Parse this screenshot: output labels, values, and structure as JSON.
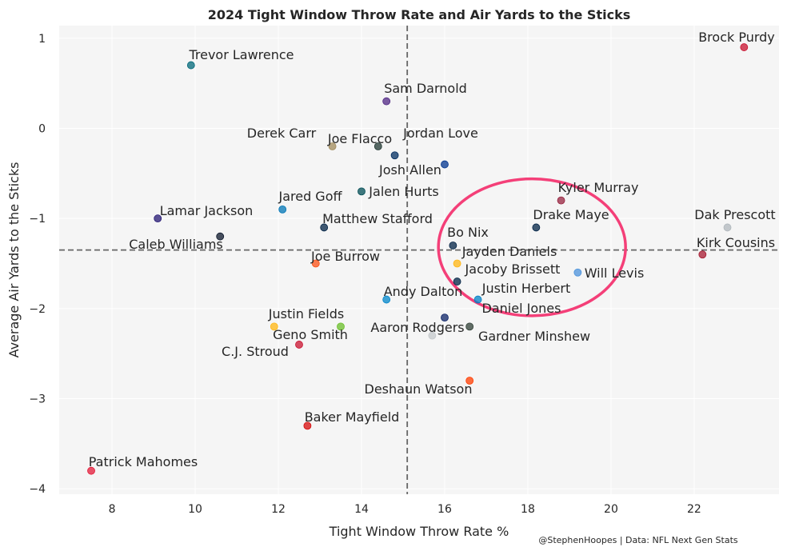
{
  "chart_data": {
    "type": "scatter",
    "title": "2024 Tight Window Throw Rate and Air Yards to the Sticks",
    "xlabel": "Tight Window Throw Rate %",
    "ylabel": "Average Air Yards to the Sticks",
    "xlim": [
      6.73,
      24.04
    ],
    "ylim": [
      -4.06,
      1.14
    ],
    "xticks": [
      8,
      10,
      12,
      14,
      16,
      18,
      20,
      22
    ],
    "yticks": [
      1,
      0,
      -1,
      -2,
      -3,
      -4
    ],
    "ytick_labels": [
      "1",
      "0",
      "−1",
      "−2",
      "−3",
      "−4"
    ],
    "grid": true,
    "reference_lines": {
      "x": 15.1,
      "y": -1.35
    },
    "highlight_ellipse": {
      "cx": 18.1,
      "cy": -1.32,
      "rx": 2.25,
      "ry": 0.76,
      "color": "#f43f78"
    },
    "credit": "@StephenHoopes | Data: NFL Next Gen Stats",
    "points": [
      {
        "name": "Trevor Lawrence",
        "x": 9.9,
        "y": 0.7,
        "color": "#006778"
      },
      {
        "name": "Sam Darnold",
        "x": 14.6,
        "y": 0.3,
        "color": "#4F2683"
      },
      {
        "name": "Brock Purdy",
        "x": 23.2,
        "y": 0.9,
        "color": "#C8102E"
      },
      {
        "name": "Derek Carr",
        "x": 13.3,
        "y": -0.2,
        "color": "#A08A5A"
      },
      {
        "name": "Jordan Love",
        "x": 14.4,
        "y": -0.2,
        "color": "#203731"
      },
      {
        "name": "Joe Flacco",
        "x": 14.8,
        "y": -0.3,
        "color": "#002C5F"
      },
      {
        "name": "Josh Allen",
        "x": 16.0,
        "y": -0.4,
        "color": "#00338D"
      },
      {
        "name": "Jalen Hurts",
        "x": 14.0,
        "y": -0.7,
        "color": "#004C54"
      },
      {
        "name": "Kyler Murray",
        "x": 18.8,
        "y": -0.8,
        "color": "#97233F"
      },
      {
        "name": "Jared Goff",
        "x": 12.1,
        "y": -0.9,
        "color": "#0076B6"
      },
      {
        "name": "Lamar Jackson",
        "x": 9.1,
        "y": -1.0,
        "color": "#241773"
      },
      {
        "name": "Matthew Stafford",
        "x": 13.1,
        "y": -1.1,
        "color": "#002244"
      },
      {
        "name": "Drake Maye",
        "x": 18.2,
        "y": -1.1,
        "color": "#002244"
      },
      {
        "name": "Dak Prescott",
        "x": 22.8,
        "y": -1.1,
        "color": "#B0B7BC"
      },
      {
        "name": "Caleb Williams",
        "x": 10.6,
        "y": -1.2,
        "color": "#0B162A"
      },
      {
        "name": "Bo Nix",
        "x": 16.2,
        "y": -1.3,
        "color": "#002244"
      },
      {
        "name": "Kirk Cousins",
        "x": 22.2,
        "y": -1.4,
        "color": "#A71930"
      },
      {
        "name": "Joe Burrow",
        "x": 12.9,
        "y": -1.5,
        "color": "#FB4F14"
      },
      {
        "name": "Jayden Daniels",
        "x": 16.3,
        "y": -1.5,
        "color": "#FFB612"
      },
      {
        "name": "Will Levis",
        "x": 19.2,
        "y": -1.6,
        "color": "#4B92DB"
      },
      {
        "name": "Jacoby Brissett",
        "x": 16.3,
        "y": -1.7,
        "color": "#002244"
      },
      {
        "name": "Andy Dalton",
        "x": 14.6,
        "y": -1.9,
        "color": "#0085CA"
      },
      {
        "name": "Justin Herbert",
        "x": 16.8,
        "y": -1.9,
        "color": "#0080C6"
      },
      {
        "name": "Daniel Jones",
        "x": 16.0,
        "y": -2.1,
        "color": "#0B2265"
      },
      {
        "name": "Gardner Minshew",
        "x": 16.6,
        "y": -2.2,
        "color": "#2F3F35"
      },
      {
        "name": "Aaron Rodgers",
        "x": 15.7,
        "y": -2.3,
        "color": "#C4C8CB"
      },
      {
        "name": "Justin Fields",
        "x": 11.9,
        "y": -2.2,
        "color": "#FFB612"
      },
      {
        "name": "Geno Smith",
        "x": 13.5,
        "y": -2.2,
        "color": "#69BE28"
      },
      {
        "name": "C.J. Stroud",
        "x": 12.5,
        "y": -2.4,
        "color": "#C8102E"
      },
      {
        "name": "Deshaun Watson",
        "x": 16.6,
        "y": -2.8,
        "color": "#FF3C00"
      },
      {
        "name": "Baker Mayfield",
        "x": 12.7,
        "y": -3.3,
        "color": "#D50A0A"
      },
      {
        "name": "Patrick Mahomes",
        "x": 7.5,
        "y": -3.8,
        "color": "#E31837"
      }
    ]
  }
}
